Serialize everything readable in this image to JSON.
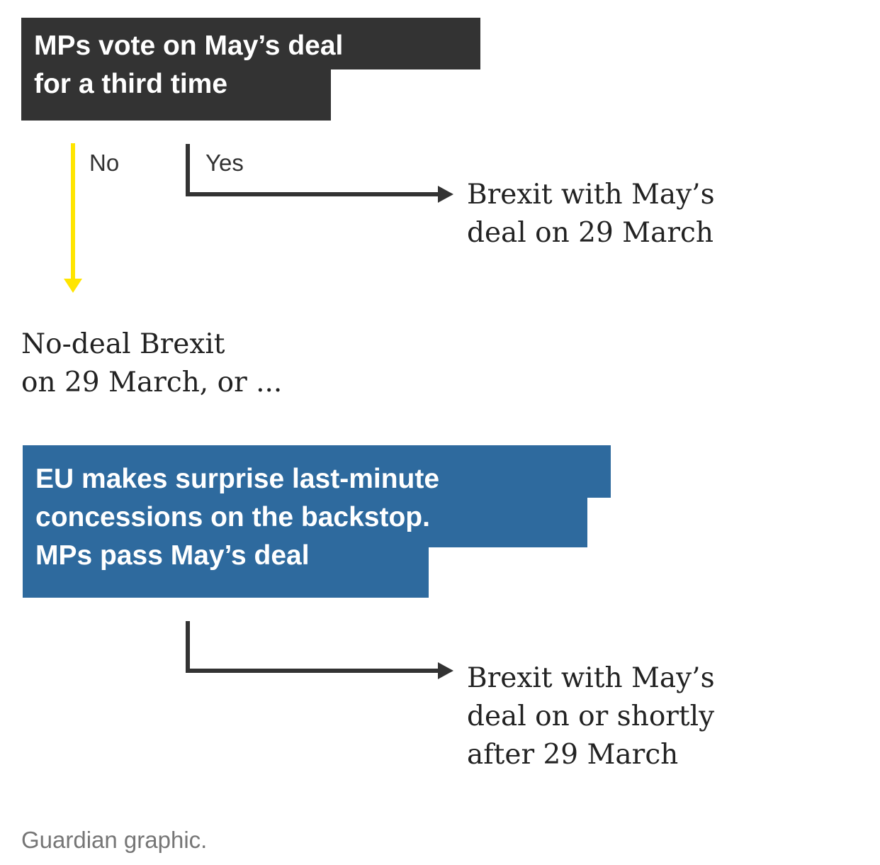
{
  "colors": {
    "question_box": "#333333",
    "scenario_box": "#2e6a9e",
    "no_branch": "#ffe500",
    "yes_branch": "#333333",
    "body_text": "#222222",
    "caption_text": "#767676"
  },
  "question": {
    "lines": [
      "MPs vote on May’s deal",
      "for a third time"
    ]
  },
  "branches": {
    "no_label": "No",
    "yes_label": "Yes"
  },
  "outcomes": {
    "yes_outcome": {
      "lines": [
        "Brexit with May’s",
        "deal on 29 March"
      ]
    },
    "no_outcome": {
      "lines": [
        "No-deal Brexit",
        "on 29 March, or ..."
      ]
    },
    "final_outcome": {
      "lines": [
        "Brexit with May’s",
        "deal on or shortly",
        "after 29 March"
      ]
    }
  },
  "scenario": {
    "lines": [
      "EU makes surprise last-minute",
      "concessions on the backstop.",
      "MPs pass May’s deal"
    ]
  },
  "caption": "Guardian graphic."
}
